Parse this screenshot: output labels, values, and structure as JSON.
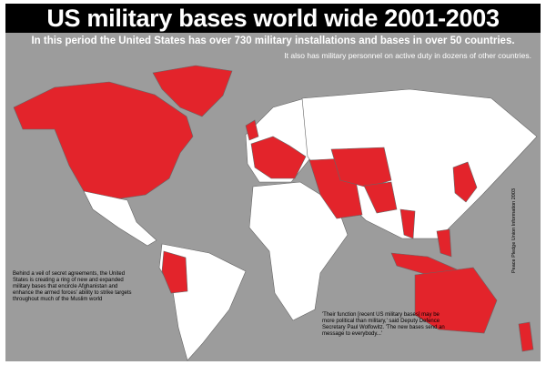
{
  "header": {
    "title": "US military bases world wide 2001-2003",
    "subtitle": "In this period the United States has over 730 military installations and bases in over 50 countries.",
    "subtitle_2": "It also has military personnel on active duty in dozens of other countries."
  },
  "annotations": {
    "left": "Behind a veil of secret agreements, the United States is creating a ring of new and expanded military bases that encircle Afghanistan and enhance the armed forces' ability to strike targets throughout much of the Muslim world",
    "bottom": "'Their function [recent US military bases] may be more political than military,' said Deputy Defence Secretary Paul Wolfowitz. 'The new bases send an message to everybody...'",
    "credit": "Peace Pledge Union Information 2003"
  }
}
